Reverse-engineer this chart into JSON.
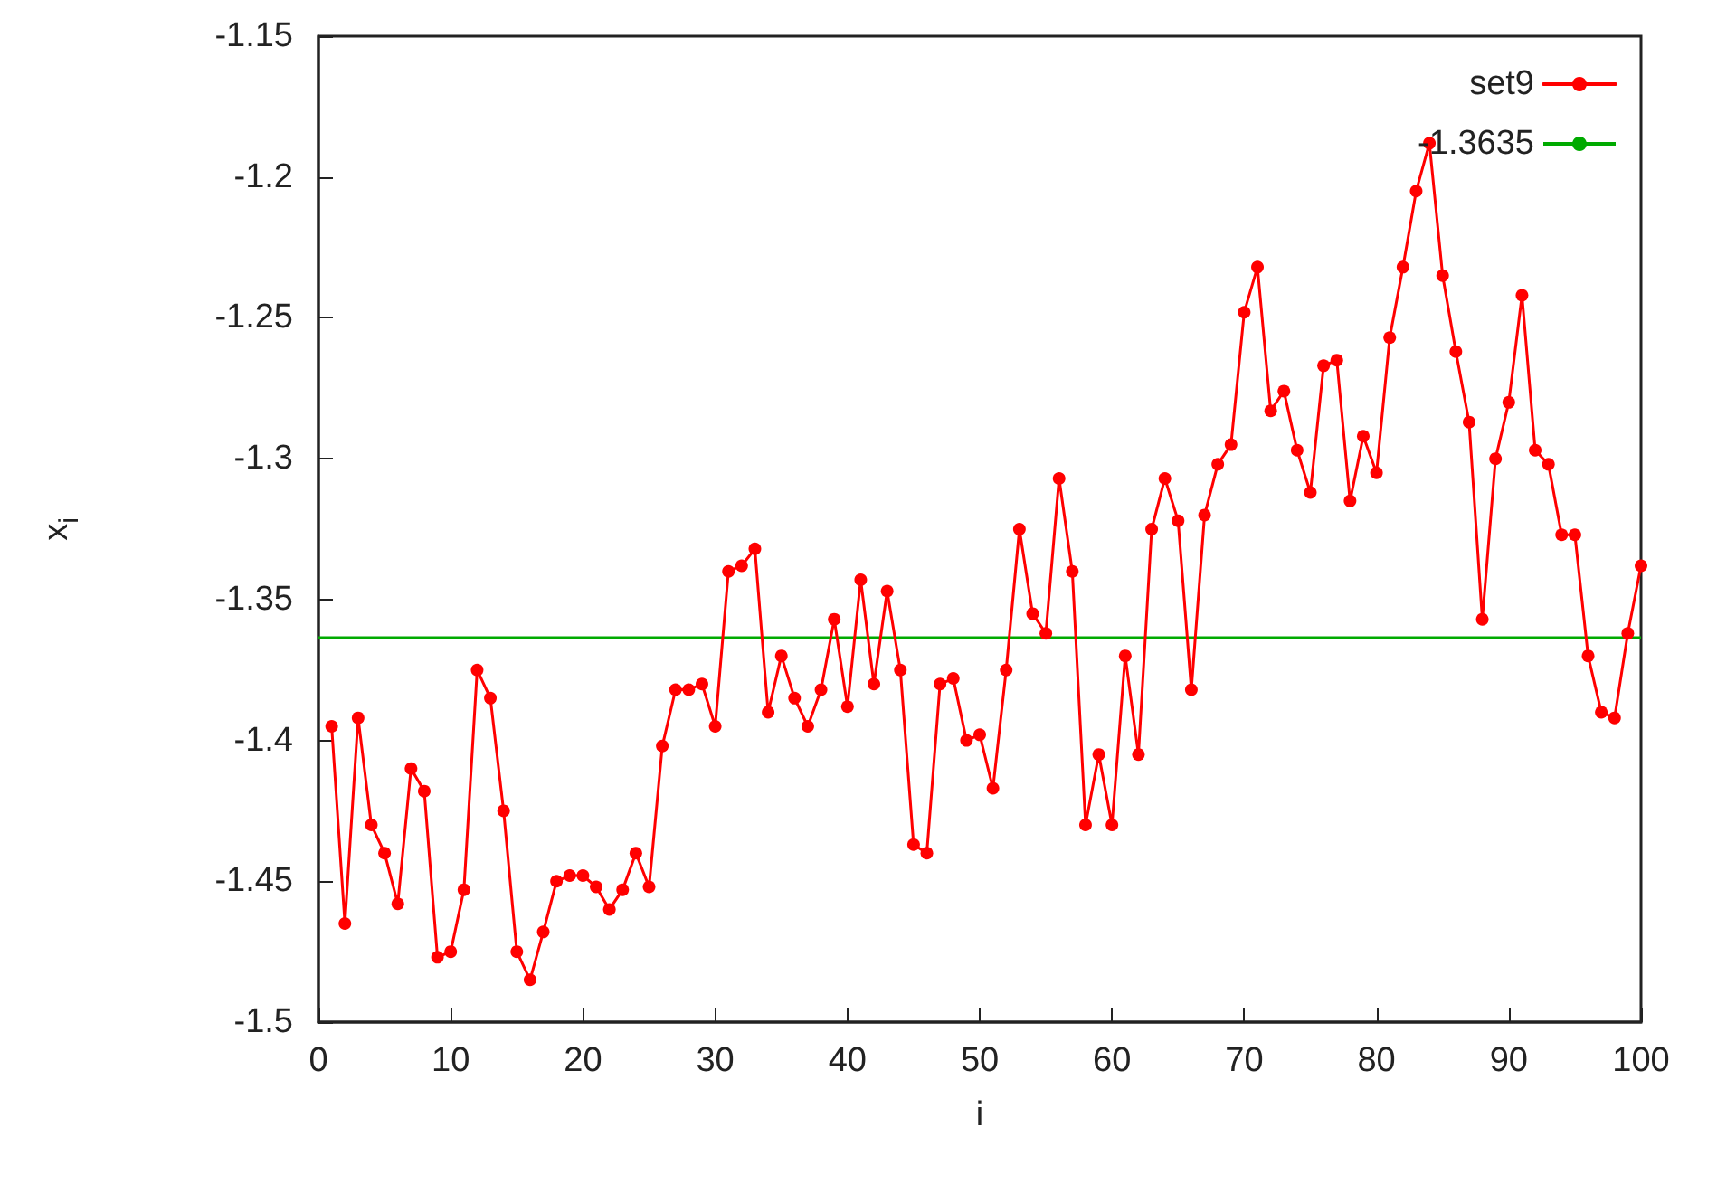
{
  "chart_data": {
    "type": "line",
    "xlabel": "i",
    "ylabel": "x$_{i}$",
    "x": [
      1,
      2,
      3,
      4,
      5,
      6,
      7,
      8,
      9,
      10,
      11,
      12,
      13,
      14,
      15,
      16,
      17,
      18,
      19,
      20,
      21,
      22,
      23,
      24,
      25,
      26,
      27,
      28,
      29,
      30,
      31,
      32,
      33,
      34,
      35,
      36,
      37,
      38,
      39,
      40,
      41,
      42,
      43,
      44,
      45,
      46,
      47,
      48,
      49,
      50,
      51,
      52,
      53,
      54,
      55,
      56,
      57,
      58,
      59,
      60,
      61,
      62,
      63,
      64,
      65,
      66,
      67,
      68,
      69,
      70,
      71,
      72,
      73,
      74,
      75,
      76,
      77,
      78,
      79,
      80,
      81,
      82,
      83,
      84,
      85,
      86,
      87,
      88,
      89,
      90,
      91,
      92,
      93,
      94,
      95,
      96,
      97,
      98,
      99,
      100
    ],
    "series": [
      {
        "name": "set9",
        "color": "#ff0000",
        "values": [
          -1.395,
          -1.465,
          -1.392,
          -1.43,
          -1.44,
          -1.458,
          -1.41,
          -1.418,
          -1.477,
          -1.475,
          -1.453,
          -1.375,
          -1.385,
          -1.425,
          -1.475,
          -1.485,
          -1.468,
          -1.45,
          -1.448,
          -1.448,
          -1.452,
          -1.46,
          -1.453,
          -1.44,
          -1.452,
          -1.402,
          -1.382,
          -1.382,
          -1.38,
          -1.395,
          -1.34,
          -1.338,
          -1.332,
          -1.39,
          -1.37,
          -1.385,
          -1.395,
          -1.382,
          -1.357,
          -1.388,
          -1.343,
          -1.38,
          -1.347,
          -1.375,
          -1.437,
          -1.44,
          -1.38,
          -1.378,
          -1.4,
          -1.398,
          -1.417,
          -1.375,
          -1.325,
          -1.355,
          -1.362,
          -1.307,
          -1.34,
          -1.43,
          -1.405,
          -1.43,
          -1.37,
          -1.405,
          -1.325,
          -1.307,
          -1.322,
          -1.382,
          -1.32,
          -1.302,
          -1.295,
          -1.248,
          -1.232,
          -1.283,
          -1.276,
          -1.297,
          -1.312,
          -1.267,
          -1.265,
          -1.315,
          -1.292,
          -1.305,
          -1.257,
          -1.232,
          -1.205,
          -1.188,
          -1.235,
          -1.262,
          -1.287,
          -1.357,
          -1.3,
          -1.28,
          -1.242,
          -1.297,
          -1.302,
          -1.327,
          -1.327,
          -1.37,
          -1.39,
          -1.392,
          -1.362,
          -1.338
        ]
      }
    ],
    "ref_lines": [
      {
        "axis": "y",
        "value": -1.3635,
        "label": "-1.3635",
        "color": "#00aa00"
      }
    ],
    "xlim": [
      0,
      100
    ],
    "xticks": [
      0,
      10,
      20,
      30,
      40,
      50,
      60,
      70,
      80,
      90,
      100
    ],
    "ylim": [
      -1.5,
      -1.15
    ],
    "yticks": [
      -1.5,
      -1.45,
      -1.4,
      -1.35,
      -1.3,
      -1.25,
      -1.2,
      -1.15
    ],
    "grid": false,
    "legend": "top right",
    "marker": "circle",
    "line_style": "solid"
  }
}
